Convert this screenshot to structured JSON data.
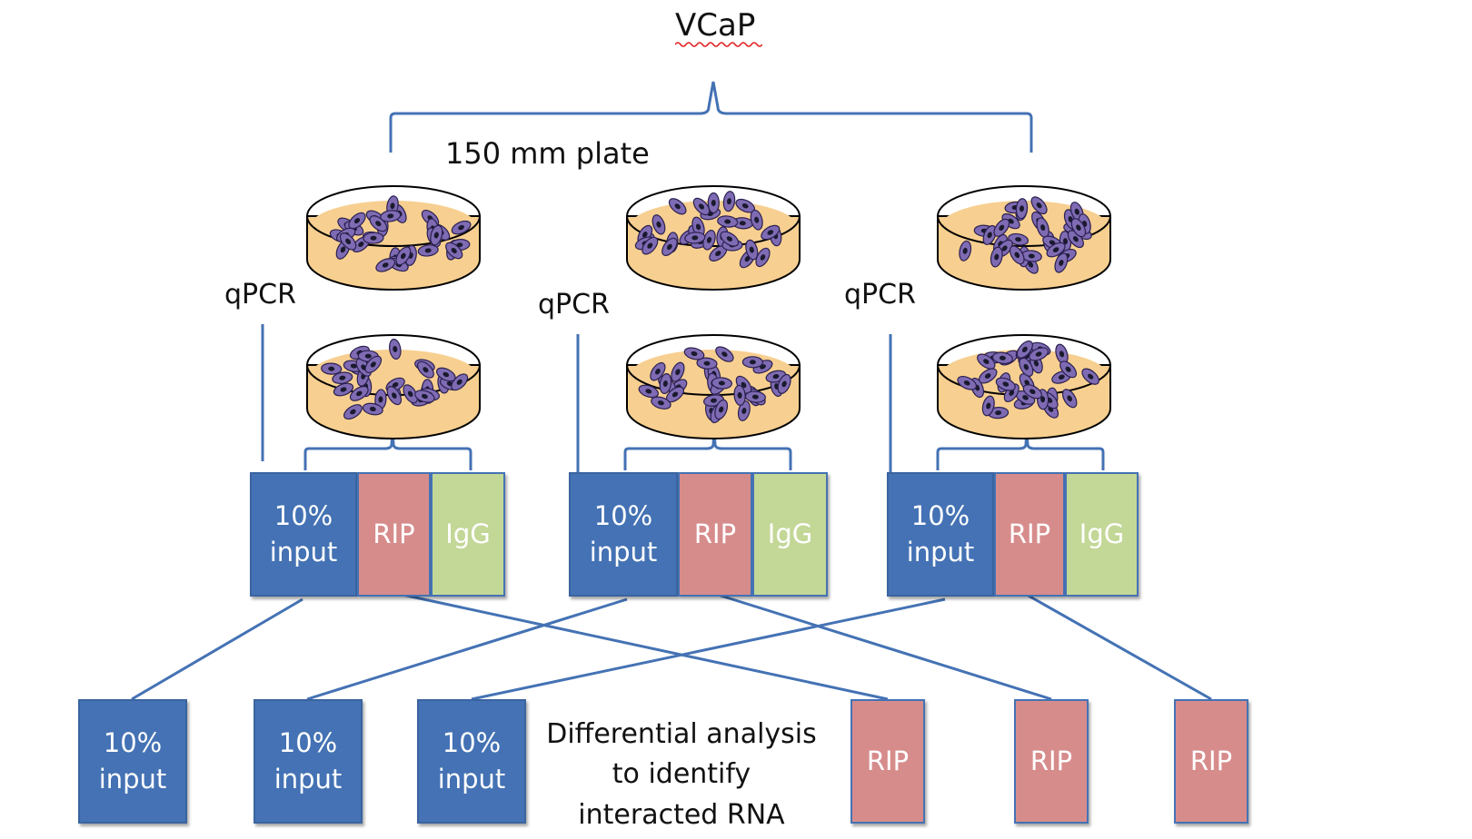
{
  "diagram": {
    "title": "VCaP",
    "plate_label": "150 mm plate",
    "qpcr_labels": [
      "qPCR",
      "qPCR",
      "qPCR"
    ],
    "groups": [
      {
        "input": "10%\ninput",
        "rip": "RIP",
        "igg": "IgG"
      },
      {
        "input": "10%\ninput",
        "rip": "RIP",
        "igg": "IgG"
      },
      {
        "input": "10%\ninput",
        "rip": "RIP",
        "igg": "IgG"
      }
    ],
    "bottom_inputs": [
      "10%\ninput",
      "10%\ninput",
      "10%\ninput"
    ],
    "bottom_rips": [
      "RIP",
      "RIP",
      "RIP"
    ],
    "analysis_text": "Differential analysis\nto identify\ninteracted RNA"
  },
  "colors": {
    "line": "#4472b4",
    "input": "#4472b4",
    "rip": "#d78c8c",
    "igg": "#c3d797",
    "medium": "#f7cf90",
    "cell": "#7f6bb3",
    "nucleus": "#1a1a2e",
    "spellcheck": "#e02020"
  },
  "icons": [
    "petri-dish-icon"
  ]
}
